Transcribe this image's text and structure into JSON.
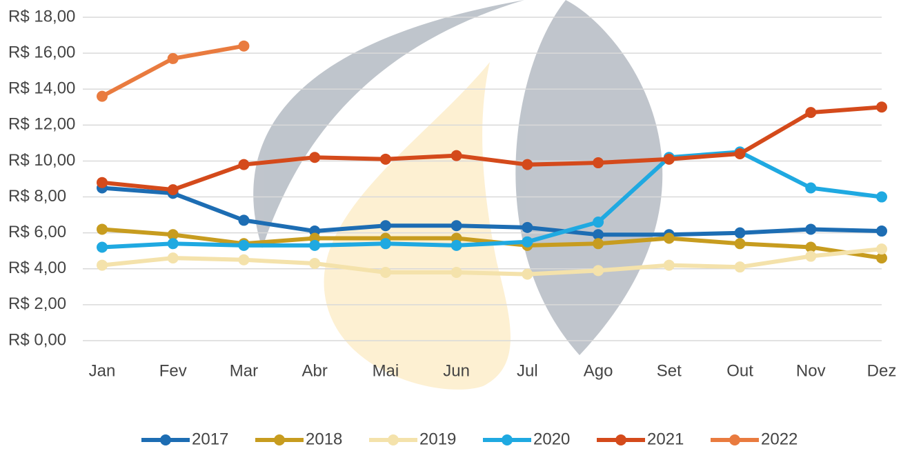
{
  "chart_data": {
    "type": "line",
    "categories": [
      "Jan",
      "Fev",
      "Mar",
      "Abr",
      "Mai",
      "Jun",
      "Jul",
      "Ago",
      "Set",
      "Out",
      "Nov",
      "Dez"
    ],
    "series": [
      {
        "name": "2017",
        "color": "#1d6db3",
        "values": [
          8.5,
          8.2,
          6.7,
          6.1,
          6.4,
          6.4,
          6.3,
          5.9,
          5.9,
          6.0,
          6.2,
          6.1
        ]
      },
      {
        "name": "2018",
        "color": "#c79c1f",
        "values": [
          6.2,
          5.9,
          5.4,
          5.7,
          5.7,
          5.7,
          5.3,
          5.4,
          5.7,
          5.4,
          5.2,
          4.6
        ]
      },
      {
        "name": "2019",
        "color": "#f4e2ab",
        "values": [
          4.2,
          4.6,
          4.5,
          4.3,
          3.8,
          3.8,
          3.7,
          3.9,
          4.2,
          4.1,
          4.7,
          5.1
        ]
      },
      {
        "name": "2020",
        "color": "#1fa9e1",
        "values": [
          5.2,
          5.4,
          5.3,
          5.3,
          5.4,
          5.3,
          5.5,
          6.6,
          10.2,
          10.5,
          8.5,
          8.0
        ]
      },
      {
        "name": "2021",
        "color": "#d44a1b",
        "values": [
          8.8,
          8.4,
          9.8,
          10.2,
          10.1,
          10.3,
          9.8,
          9.9,
          10.1,
          10.4,
          12.7,
          13.0
        ]
      },
      {
        "name": "2022",
        "color": "#e97b3f",
        "values": [
          13.6,
          15.7,
          16.4,
          null,
          null,
          null,
          null,
          null,
          null,
          null,
          null,
          null
        ]
      }
    ],
    "ylim": [
      0,
      18
    ],
    "yticks": [
      {
        "value": 0,
        "label": "R$ 0,00"
      },
      {
        "value": 2,
        "label": "R$ 2,00"
      },
      {
        "value": 4,
        "label": "R$ 4,00"
      },
      {
        "value": 6,
        "label": "R$ 6,00"
      },
      {
        "value": 8,
        "label": "R$ 8,00"
      },
      {
        "value": 10,
        "label": "R$ 10,00"
      },
      {
        "value": 12,
        "label": "R$ 12,00"
      },
      {
        "value": 14,
        "label": "R$ 14,00"
      },
      {
        "value": 16,
        "label": "R$ 16,00"
      },
      {
        "value": 18,
        "label": "R$ 18,00"
      }
    ],
    "grid": true,
    "legend": "bottom"
  }
}
